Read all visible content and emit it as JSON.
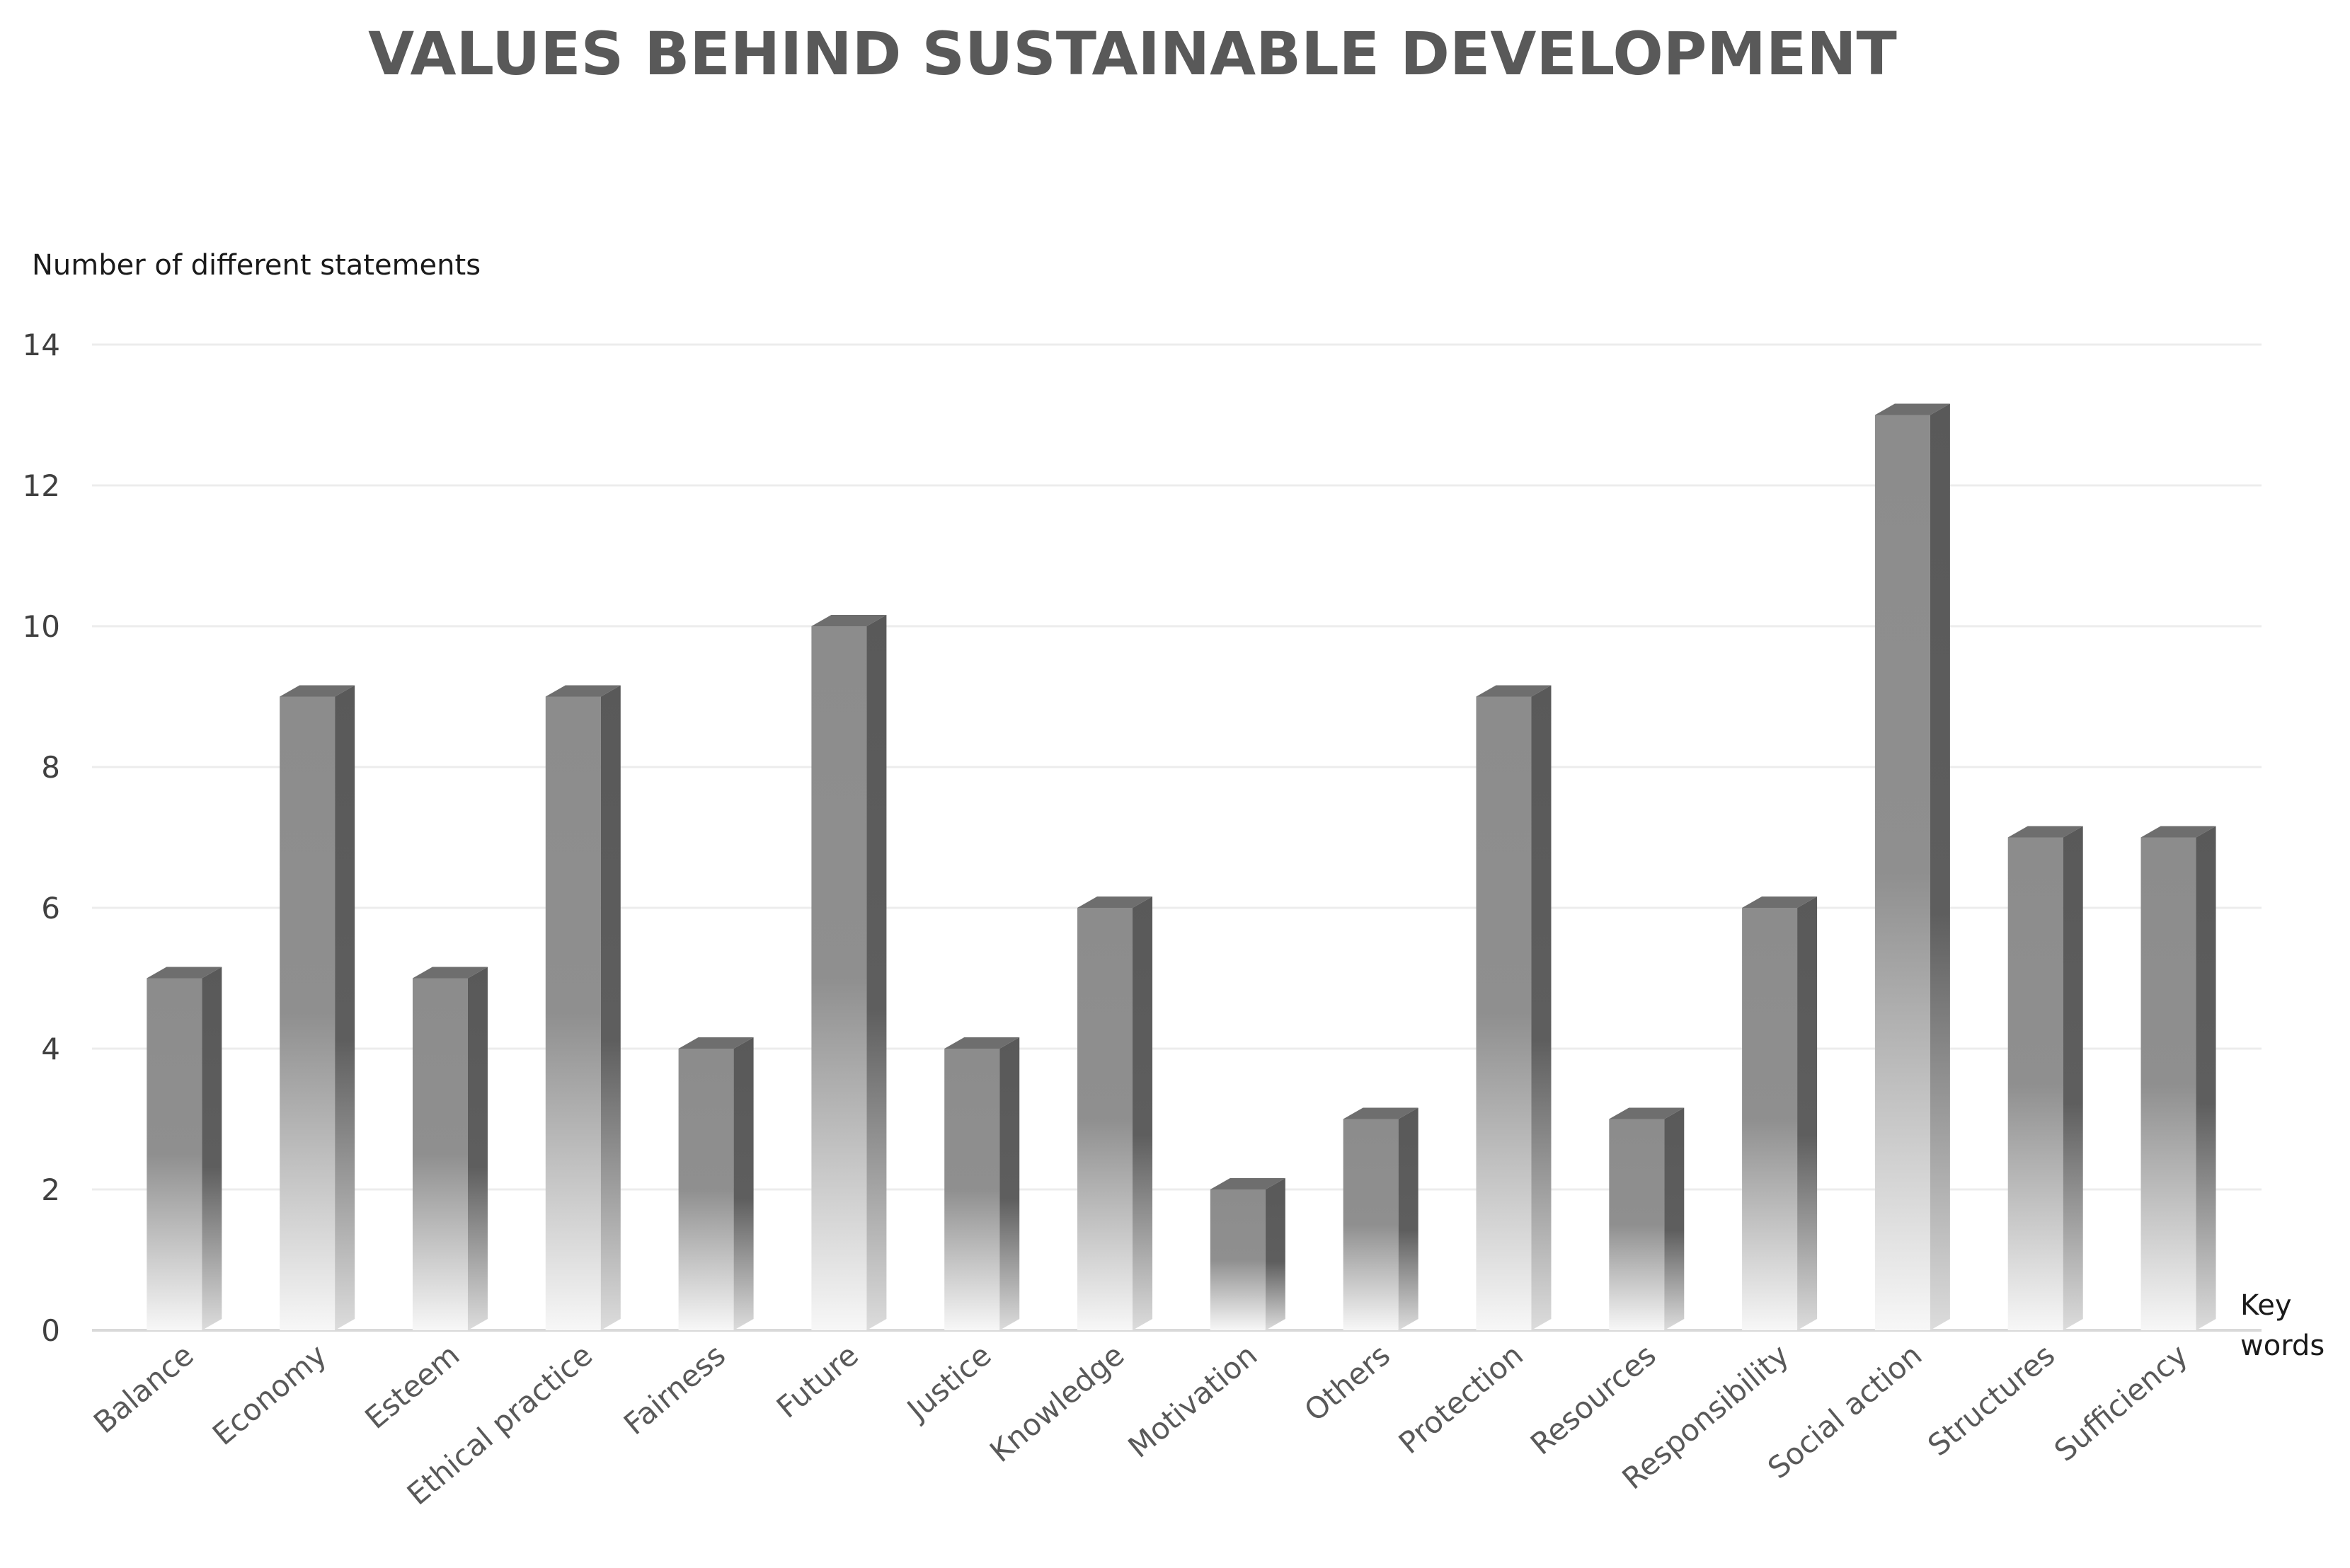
{
  "chart_data": {
    "type": "bar",
    "title": "VALUES BEHIND SUSTAINABLE DEVELOPMENT",
    "ylabel": "Number of different statements",
    "xlabel": "Key words",
    "ylim": [
      0,
      14
    ],
    "yticks": [
      0,
      2,
      4,
      6,
      8,
      10,
      12,
      14
    ],
    "grid": true,
    "categories": [
      "Balance",
      "Economy",
      "Esteem",
      "Ethical practice",
      "Fairness",
      "Future",
      "Justice",
      "Knowledge",
      "Motivation",
      "Others",
      "Protection",
      "Resources",
      "Responsibility",
      "Social action",
      "Structures",
      "Sufficiency"
    ],
    "values": [
      5,
      9,
      5,
      9,
      4,
      10,
      4,
      6,
      2,
      3,
      9,
      3,
      6,
      13,
      7,
      7
    ],
    "colors": {
      "bar_front_top": "#8c8c8c",
      "bar_front_bottom": "#f7f7f7",
      "bar_side": "#5e5e5e",
      "bar_top": "#6e6e6e",
      "grid": "#ececec",
      "axis": "#d9d9d9"
    }
  }
}
